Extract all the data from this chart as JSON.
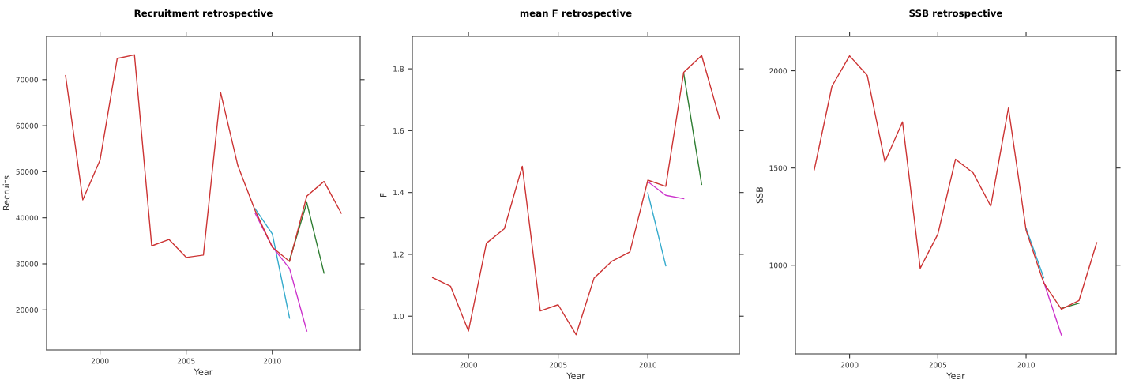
{
  "chart_data": [
    {
      "type": "line",
      "title": "Recruitment retrospective",
      "xlabel": "Year",
      "ylabel": "Recruits",
      "x": [
        1998,
        1999,
        2000,
        2001,
        2002,
        2003,
        2004,
        2005,
        2006,
        2007,
        2008,
        2009,
        2010,
        2011,
        2012,
        2013,
        2014
      ],
      "xlim": [
        1996.9,
        2015.1
      ],
      "xticks": [
        2000,
        2005,
        2010
      ],
      "ylim": [
        11300,
        79400
      ],
      "yticks": [
        20000,
        30000,
        40000,
        50000,
        60000,
        70000
      ],
      "grid": false,
      "tick_labels": "xy",
      "series": [
        {
          "color": "#33aacc",
          "values": [
            null,
            null,
            null,
            null,
            null,
            null,
            null,
            null,
            null,
            null,
            null,
            42000,
            36500,
            18200,
            null,
            null,
            null
          ]
        },
        {
          "color": "#cc33cc",
          "values": [
            null,
            null,
            null,
            null,
            null,
            null,
            null,
            null,
            null,
            null,
            null,
            41000,
            33700,
            29000,
            15400,
            null,
            null
          ]
        },
        {
          "color": "#2e7d32",
          "values": [
            null,
            null,
            null,
            null,
            null,
            null,
            null,
            null,
            null,
            null,
            null,
            null,
            null,
            30800,
            43300,
            28000,
            null
          ]
        },
        {
          "color": "#cc3333",
          "values": [
            70900,
            43900,
            52500,
            74600,
            75400,
            33900,
            35300,
            31400,
            31900,
            67200,
            51300,
            41600,
            33600,
            30500,
            44700,
            47900,
            41000
          ]
        }
      ]
    },
    {
      "type": "line",
      "title": "mean F retrospective",
      "xlabel": "Year",
      "ylabel": "F̄",
      "x": [
        1998,
        1999,
        2000,
        2001,
        2002,
        2003,
        2004,
        2005,
        2006,
        2007,
        2008,
        2009,
        2010,
        2011,
        2012,
        2013,
        2014
      ],
      "xlim": [
        1996.87,
        2015.1
      ],
      "xticks": [
        2000,
        2005,
        2010
      ],
      "ylim": [
        0.878,
        1.905
      ],
      "yticks": [
        {
          "value": 1.0,
          "label": "1.0"
        },
        1.2,
        1.4,
        1.6,
        1.8
      ],
      "grid": false,
      "tick_labels": "xy",
      "series": [
        {
          "color": "#33aacc",
          "values": [
            null,
            null,
            null,
            null,
            null,
            null,
            null,
            null,
            null,
            null,
            null,
            null,
            1.399,
            1.163,
            null,
            null,
            null
          ]
        },
        {
          "color": "#cc33cc",
          "values": [
            null,
            null,
            null,
            null,
            null,
            null,
            null,
            null,
            null,
            null,
            null,
            null,
            1.435,
            1.391,
            1.38,
            null,
            null
          ]
        },
        {
          "color": "#2e7d32",
          "values": [
            null,
            null,
            null,
            null,
            null,
            null,
            null,
            null,
            null,
            null,
            null,
            null,
            null,
            null,
            1.785,
            1.426,
            null
          ]
        },
        {
          "color": "#cc3333",
          "values": [
            1.125,
            1.097,
            0.952,
            1.236,
            1.283,
            1.485,
            1.017,
            1.037,
            0.94,
            1.123,
            1.178,
            1.208,
            1.44,
            1.42,
            1.789,
            1.843,
            1.638
          ]
        }
      ]
    },
    {
      "type": "line",
      "title": "SSB retrospective",
      "xlabel": "Year",
      "ylabel": "SSB",
      "x": [
        1998,
        1999,
        2000,
        2001,
        2002,
        2003,
        2004,
        2005,
        2006,
        2007,
        2008,
        2009,
        2010,
        2011,
        2012,
        2013,
        2014
      ],
      "xlim": [
        1996.93,
        2015.1
      ],
      "xticks": [
        2000,
        2005,
        2010
      ],
      "ylim": [
        544,
        2177
      ],
      "yticks": [
        1000,
        1500,
        2000
      ],
      "grid": false,
      "tick_labels": "xy",
      "series": [
        {
          "color": "#33aacc",
          "values": [
            null,
            null,
            null,
            null,
            null,
            null,
            null,
            null,
            null,
            null,
            null,
            null,
            1190,
            936,
            null,
            null,
            null
          ]
        },
        {
          "color": "#cc33cc",
          "values": [
            null,
            null,
            null,
            null,
            null,
            null,
            null,
            null,
            null,
            null,
            null,
            null,
            null,
            915,
            641,
            null,
            null
          ]
        },
        {
          "color": "#2e7d32",
          "values": [
            null,
            null,
            null,
            null,
            null,
            null,
            null,
            null,
            null,
            null,
            null,
            null,
            null,
            null,
            778,
            805,
            null
          ]
        },
        {
          "color": "#cc3333",
          "values": [
            1491,
            1920,
            2077,
            1976,
            1532,
            1737,
            984,
            1160,
            1545,
            1475,
            1304,
            1809,
            1180,
            909,
            774,
            819,
            1116
          ]
        }
      ]
    }
  ]
}
